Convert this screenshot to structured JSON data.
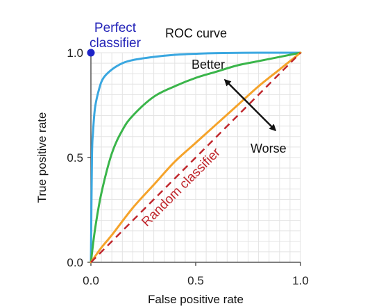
{
  "chart_data": {
    "type": "line",
    "title": "ROC curve",
    "xlabel": "False positive rate",
    "ylabel": "True positive rate",
    "xlim": [
      0,
      1
    ],
    "ylim": [
      0,
      1
    ],
    "x_ticks": [
      {
        "value": 0.0,
        "label": "0.0"
      },
      {
        "value": 0.5,
        "label": "0.5"
      },
      {
        "value": 1.0,
        "label": "1.0"
      }
    ],
    "y_ticks": [
      {
        "value": 0.0,
        "label": "0.0"
      },
      {
        "value": 0.5,
        "label": "0.5"
      },
      {
        "value": 1.0,
        "label": "1.0"
      }
    ],
    "grid": true,
    "series": [
      {
        "color": "#3aa7e0",
        "x": [
          0,
          0.005,
          0.01,
          0.02,
          0.04,
          0.06,
          0.1,
          0.15,
          0.2,
          0.3,
          0.4,
          0.5,
          0.6,
          0.8,
          1.0
        ],
        "y": [
          0,
          0.5,
          0.62,
          0.74,
          0.83,
          0.88,
          0.92,
          0.95,
          0.965,
          0.98,
          0.99,
          0.995,
          0.998,
          1.0,
          1.0
        ]
      },
      {
        "color": "#3ab54a",
        "x": [
          0,
          0.02,
          0.05,
          0.1,
          0.15,
          0.2,
          0.3,
          0.4,
          0.5,
          0.6,
          0.7,
          0.8,
          0.9,
          1.0
        ],
        "y": [
          0,
          0.16,
          0.33,
          0.52,
          0.63,
          0.7,
          0.79,
          0.84,
          0.88,
          0.91,
          0.94,
          0.96,
          0.98,
          1.0
        ]
      },
      {
        "color": "#f5a32a",
        "x": [
          0,
          0.05,
          0.1,
          0.2,
          0.3,
          0.4,
          0.5,
          0.6,
          0.7,
          0.8,
          0.9,
          1.0
        ],
        "y": [
          0,
          0.07,
          0.13,
          0.26,
          0.37,
          0.48,
          0.57,
          0.66,
          0.75,
          0.84,
          0.92,
          1.0
        ]
      },
      {
        "name": "Random classifier",
        "color": "#c0272d",
        "style": "dashed",
        "x": [
          0,
          1
        ],
        "y": [
          0,
          1
        ]
      }
    ],
    "points": [
      {
        "label": "Perfect classifier",
        "label_lines": [
          "Perfect",
          "classifier"
        ],
        "x": 0,
        "y": 1,
        "color": "#1f24c8"
      }
    ],
    "annotations": [
      {
        "text": "Better"
      },
      {
        "text": "Worse"
      }
    ],
    "arrow": {
      "from": [
        0.88,
        0.63
      ],
      "to": [
        0.64,
        0.87
      ],
      "direction": "double"
    }
  }
}
